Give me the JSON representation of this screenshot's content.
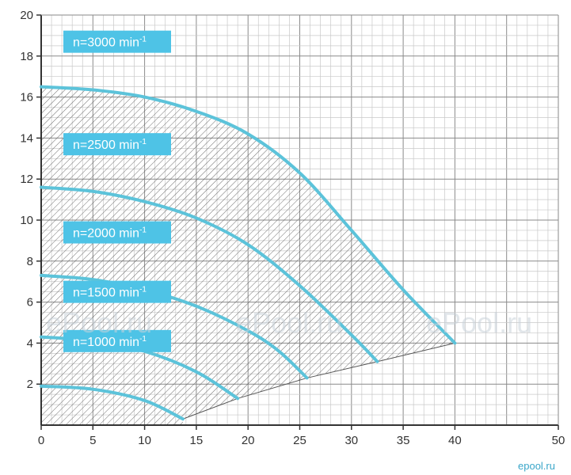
{
  "chart_data": {
    "type": "line",
    "title": "",
    "xlabel": "",
    "ylabel": "",
    "xlim": [
      0,
      50
    ],
    "ylim": [
      0,
      20
    ],
    "x_ticks": [
      0,
      5,
      10,
      15,
      20,
      25,
      30,
      35,
      40,
      50
    ],
    "y_ticks": [
      2,
      4,
      6,
      8,
      10,
      12,
      14,
      16,
      18,
      20
    ],
    "grid": true,
    "grid_minor_x_step": 1,
    "grid_minor_y_step": 0.5,
    "legend": "inline labels at left",
    "curve_color": "#5cc3da",
    "label_bg_color": "#4ec3e6",
    "hatch_color": "#555555",
    "series": [
      {
        "label": "n=3000 min",
        "sup": "-1",
        "x": [
          0,
          5,
          10,
          15,
          20,
          25,
          30,
          35,
          40
        ],
        "y": [
          16.5,
          16.35,
          16.0,
          15.3,
          14.2,
          12.3,
          9.5,
          6.6,
          4.0
        ]
      },
      {
        "label": "n=2500 min",
        "sup": "-1",
        "x": [
          0,
          5,
          10,
          15,
          20,
          25,
          30,
          32.5
        ],
        "y": [
          11.6,
          11.4,
          10.9,
          10.1,
          8.8,
          6.8,
          4.4,
          3.1
        ]
      },
      {
        "label": "n=2000 min",
        "sup": "-1",
        "x": [
          0,
          5,
          10,
          15,
          20,
          23,
          25.7
        ],
        "y": [
          7.3,
          7.1,
          6.6,
          5.8,
          4.6,
          3.6,
          2.3
        ]
      },
      {
        "label": "n=1500 min",
        "sup": "-1",
        "x": [
          0,
          5,
          10,
          15,
          19
        ],
        "y": [
          4.3,
          4.1,
          3.6,
          2.6,
          1.3
        ]
      },
      {
        "label": "n=1000 min",
        "sup": "-1",
        "x": [
          0,
          5,
          10,
          13.7
        ],
        "y": [
          1.9,
          1.75,
          1.2,
          0.3
        ]
      }
    ],
    "operating_region_boundary": {
      "x": [
        13.7,
        19,
        25.7,
        32.5,
        40
      ],
      "y": [
        0.3,
        1.3,
        2.3,
        3.1,
        4.0
      ]
    }
  },
  "watermarks": [
    "ePool.ru",
    "ePool.ru",
    "ePool.ru"
  ],
  "corner_mark": "epool.ru"
}
